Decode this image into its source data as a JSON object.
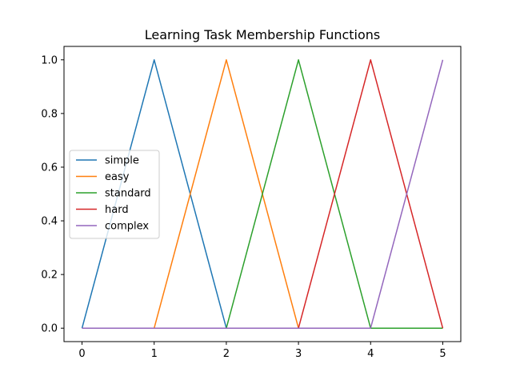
{
  "chart_data": {
    "type": "line",
    "title": "Learning Task Membership Functions",
    "xlabel": "",
    "ylabel": "",
    "xlim": [
      -0.25,
      5.25
    ],
    "ylim": [
      -0.05,
      1.05
    ],
    "x_ticks": [
      0,
      1,
      2,
      3,
      4,
      5
    ],
    "x_tick_labels": [
      "0",
      "1",
      "2",
      "3",
      "4",
      "5"
    ],
    "y_ticks": [
      0.0,
      0.2,
      0.4,
      0.6,
      0.8,
      1.0
    ],
    "y_tick_labels": [
      "0.0",
      "0.2",
      "0.4",
      "0.6",
      "0.8",
      "1.0"
    ],
    "grid": false,
    "legend_position": "center-left",
    "series": [
      {
        "name": "simple",
        "color": "#1f77b4",
        "x": [
          0,
          1,
          2,
          3,
          4,
          5
        ],
        "y": [
          0,
          1,
          0,
          0,
          0,
          0
        ]
      },
      {
        "name": "easy",
        "color": "#ff7f0e",
        "x": [
          0,
          1,
          2,
          3,
          4,
          5
        ],
        "y": [
          0,
          0,
          1,
          0,
          0,
          0
        ]
      },
      {
        "name": "standard",
        "color": "#2ca02c",
        "x": [
          0,
          1,
          2,
          3,
          4,
          5
        ],
        "y": [
          0,
          0,
          0,
          1,
          0,
          0
        ]
      },
      {
        "name": "hard",
        "color": "#d62728",
        "x": [
          0,
          1,
          2,
          3,
          4,
          5
        ],
        "y": [
          0,
          0,
          0,
          0,
          1,
          0
        ]
      },
      {
        "name": "complex",
        "color": "#9467bd",
        "x": [
          0,
          1,
          2,
          3,
          4,
          5
        ],
        "y": [
          0,
          0,
          0,
          0,
          0,
          1
        ]
      }
    ]
  }
}
